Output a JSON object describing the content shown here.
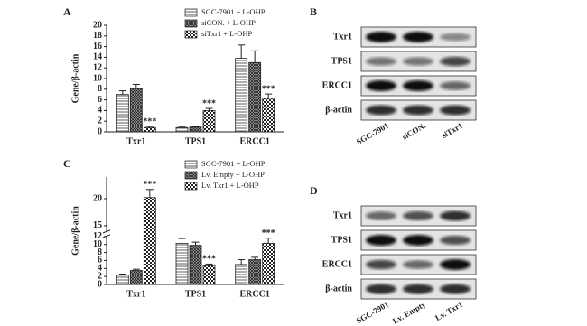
{
  "chart_data": [
    {
      "type": "bar",
      "panel": "A",
      "ylabel": "Gene/β-actin",
      "categories": [
        "Txr1",
        "TPS1",
        "ERCC1"
      ],
      "ylim": [
        0,
        20
      ],
      "yticks": [
        0,
        2,
        4,
        6,
        8,
        10,
        12,
        14,
        16,
        18,
        20
      ],
      "legend": "upper-right",
      "series": [
        {
          "name": "SGC-7901 + L-OHP",
          "pattern": "horizontal",
          "values": [
            7,
            0.8,
            13.8
          ],
          "errors": [
            0.7,
            0.1,
            2.5
          ]
        },
        {
          "name": "siCON. + L-OHP",
          "pattern": "crosshatch",
          "values": [
            8.1,
            0.9,
            13
          ],
          "errors": [
            0.8,
            0.1,
            2.2
          ]
        },
        {
          "name": "siTxr1 + L-OHP",
          "pattern": "checker",
          "values": [
            0.8,
            4.0,
            6.3
          ],
          "errors": [
            0.2,
            0.4,
            0.8
          ],
          "significance": [
            "***",
            "***",
            "***"
          ]
        }
      ]
    },
    {
      "type": "bar",
      "panel": "C",
      "ylabel": "Gene/β-actin",
      "categories": [
        "Txr1",
        "TPS1",
        "ERCC1"
      ],
      "ylim": [
        0,
        24
      ],
      "ybreak": [
        12,
        14
      ],
      "yticks": [
        0,
        2,
        4,
        6,
        8,
        10,
        12,
        15,
        20
      ],
      "legend": "upper-right",
      "series": [
        {
          "name": "SGC-7901 + L-OHP",
          "pattern": "horizontal",
          "values": [
            2.3,
            10.3,
            5
          ],
          "errors": [
            0.3,
            1.2,
            1.2
          ]
        },
        {
          "name": "Lv. Empty + L-OHP",
          "pattern": "crosshatch",
          "values": [
            3.5,
            9.8,
            6.2
          ],
          "errors": [
            0.3,
            0.8,
            0.6
          ]
        },
        {
          "name": "Lv. Txr1 + L-OHP",
          "pattern": "checker",
          "values": [
            20.2,
            4.7,
            10.3
          ],
          "errors": [
            1.5,
            0.4,
            1.3
          ],
          "significance": [
            "***",
            "***",
            "***"
          ]
        }
      ]
    }
  ],
  "blots": [
    {
      "panel": "B",
      "rows": [
        "Txr1",
        "TPS1",
        "ERCC1",
        "β-actin"
      ],
      "lanes": [
        "SGC-7901",
        "siCON.",
        "siTxr1"
      ]
    },
    {
      "panel": "D",
      "rows": [
        "Txr1",
        "TPS1",
        "ERCC1",
        "β-actin"
      ],
      "lanes": [
        "SGC-7901",
        "Lv. Empty",
        "Lv. Txr1"
      ]
    }
  ]
}
